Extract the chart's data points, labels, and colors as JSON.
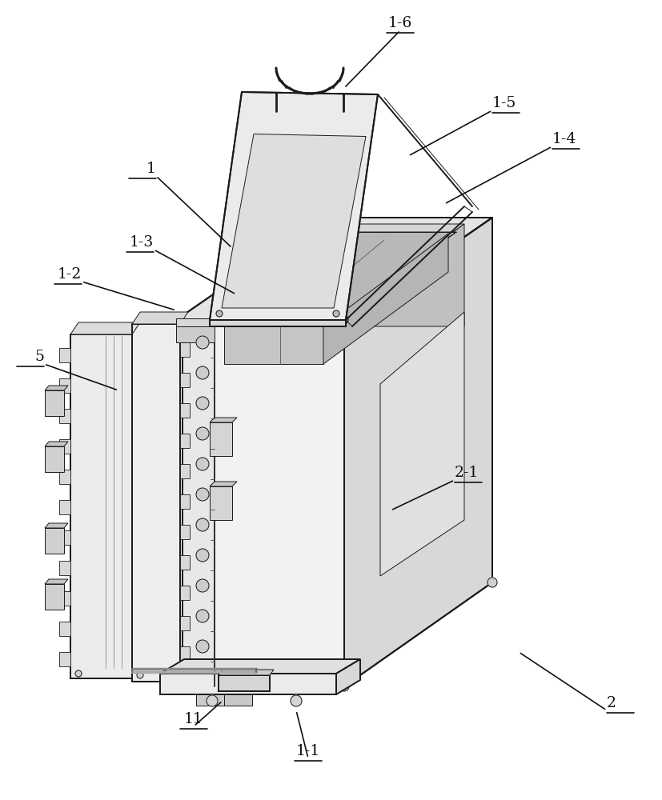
{
  "figure_width": 8.28,
  "figure_height": 10.0,
  "dpi": 100,
  "bg_color": "#ffffff",
  "lc": "#1a1a1a",
  "lw_main": 1.4,
  "lw_thin": 0.7,
  "annotations": [
    [
      "1-6",
      500,
      38,
      430,
      110,
      "center"
    ],
    [
      "1-5",
      615,
      138,
      510,
      195,
      "left"
    ],
    [
      "1-4",
      690,
      183,
      555,
      255,
      "left"
    ],
    [
      "1",
      195,
      220,
      290,
      310,
      "right"
    ],
    [
      "1-3",
      192,
      312,
      295,
      368,
      "right"
    ],
    [
      "1-2",
      102,
      352,
      220,
      388,
      "right"
    ],
    [
      "5",
      55,
      455,
      148,
      488,
      "right"
    ],
    [
      "2-1",
      568,
      600,
      488,
      638,
      "left"
    ],
    [
      "11",
      242,
      908,
      278,
      876,
      "center"
    ],
    [
      "1-1",
      385,
      948,
      370,
      888,
      "center"
    ],
    [
      "2",
      758,
      888,
      648,
      815,
      "left"
    ]
  ]
}
